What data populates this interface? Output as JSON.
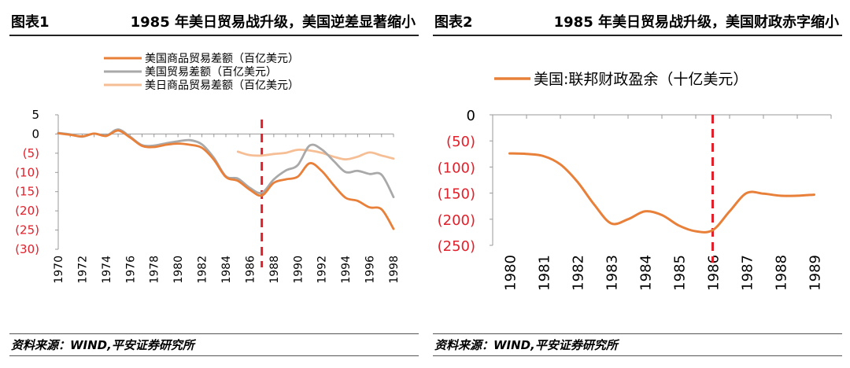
{
  "colors": {
    "us_trade_goods": "#E8803A",
    "us_trade_total": "#A9A9A9",
    "us_japan_goods": "#F6BE95",
    "fiscal": "#E8803A",
    "ref_line": "#E0202A",
    "neg_tick": "#E0202A"
  },
  "left": {
    "label": "图表1",
    "title": "1985 年美日贸易战升级，美国逆差显著缩小",
    "source": "资料来源：WIND,平安证券研究所"
  },
  "right": {
    "label": "图表2",
    "title": "1985 年美日贸易战升级，美国财政赤字缩小",
    "source": "资料来源：WIND,平安证券研究所"
  },
  "chart_data": [
    {
      "type": "line",
      "title": "1985 年美日贸易战升级，美国逆差显著缩小",
      "xlabel": "",
      "ylabel": "",
      "xlim": [
        1970,
        1998
      ],
      "ylim": [
        -30,
        5
      ],
      "yticks": [
        5,
        0,
        -5,
        -10,
        -15,
        -20,
        -25,
        -30
      ],
      "ytick_labels": [
        "5",
        "0",
        "(5)",
        "(10)",
        "(15)",
        "(20)",
        "(25)",
        "(30)"
      ],
      "xticks": [
        1970,
        1972,
        1974,
        1976,
        1978,
        1980,
        1982,
        1984,
        1986,
        1988,
        1990,
        1992,
        1994,
        1996,
        1998
      ],
      "reference_line_x": 1987,
      "legend_position": "top-left",
      "series": [
        {
          "name": "美国商品贸易差额（百亿美元）",
          "color_key": "us_trade_goods",
          "x": [
            1970,
            1971,
            1972,
            1973,
            1974,
            1975,
            1976,
            1977,
            1978,
            1979,
            1980,
            1981,
            1982,
            1983,
            1984,
            1985,
            1986,
            1987,
            1988,
            1989,
            1990,
            1991,
            1992,
            1993,
            1994,
            1995,
            1996,
            1997,
            1998
          ],
          "values": [
            0.2,
            -0.2,
            -0.6,
            0.1,
            -0.5,
            0.9,
            -0.9,
            -3.1,
            -3.4,
            -2.8,
            -2.5,
            -2.8,
            -3.6,
            -6.7,
            -11.2,
            -12.2,
            -14.5,
            -16.0,
            -12.7,
            -11.8,
            -11.1,
            -7.6,
            -9.6,
            -13.3,
            -16.6,
            -17.4,
            -19.1,
            -19.6,
            -24.7
          ]
        },
        {
          "name": "美国贸易差额（百亿美元）",
          "color_key": "us_trade_total",
          "x": [
            1970,
            1971,
            1972,
            1973,
            1974,
            1975,
            1976,
            1977,
            1978,
            1979,
            1980,
            1981,
            1982,
            1983,
            1984,
            1985,
            1986,
            1987,
            1988,
            1989,
            1990,
            1991,
            1992,
            1993,
            1994,
            1995,
            1996,
            1997,
            1998
          ],
          "values": [
            0.3,
            -0.1,
            -0.7,
            0.1,
            -0.4,
            1.2,
            -0.7,
            -2.9,
            -3.0,
            -2.4,
            -1.9,
            -1.6,
            -2.7,
            -6.2,
            -11.0,
            -11.6,
            -14.0,
            -15.3,
            -11.8,
            -9.5,
            -8.1,
            -3.0,
            -4.0,
            -7.0,
            -9.9,
            -9.6,
            -10.4,
            -10.6,
            -16.4
          ]
        },
        {
          "name": "美日商品贸易差额（百亿美元）",
          "color_key": "us_japan_goods",
          "x": [
            1985,
            1986,
            1987,
            1988,
            1989,
            1990,
            1991,
            1992,
            1993,
            1994,
            1995,
            1996,
            1997,
            1998
          ],
          "values": [
            -4.6,
            -5.5,
            -5.6,
            -5.2,
            -4.9,
            -4.1,
            -4.3,
            -4.9,
            -5.9,
            -6.6,
            -5.9,
            -4.8,
            -5.6,
            -6.4
          ]
        }
      ]
    },
    {
      "type": "line",
      "title": "1985 年美日贸易战升级，美国财政赤字缩小",
      "xlabel": "",
      "ylabel": "",
      "ylim": [
        -250,
        0
      ],
      "yticks": [
        0,
        -50,
        -100,
        -150,
        -200,
        -250
      ],
      "ytick_labels": [
        "0",
        "(50)",
        "(100)",
        "(150)",
        "(200)",
        "(250)"
      ],
      "categories": [
        "1980",
        "1981",
        "1982",
        "1983",
        "1984",
        "1985",
        "1986",
        "1987",
        "1988",
        "1989"
      ],
      "reference_line_category": "1986",
      "legend_position": "top-left",
      "series": [
        {
          "name": "美国:联邦财政盈余（十亿美元）",
          "color_key": "fiscal",
          "x": [
            1980.0,
            1980.5,
            1981.0,
            1981.5,
            1982.0,
            1982.5,
            1983.0,
            1983.5,
            1984.0,
            1984.5,
            1985.0,
            1985.5,
            1986.0,
            1986.5,
            1987.0,
            1987.5,
            1988.0,
            1988.5,
            1989.0
          ],
          "values": [
            -74,
            -75,
            -79,
            -95,
            -128,
            -172,
            -208,
            -200,
            -185,
            -192,
            -212,
            -223,
            -221,
            -185,
            -150,
            -151,
            -155,
            -155,
            -153
          ]
        }
      ]
    }
  ]
}
